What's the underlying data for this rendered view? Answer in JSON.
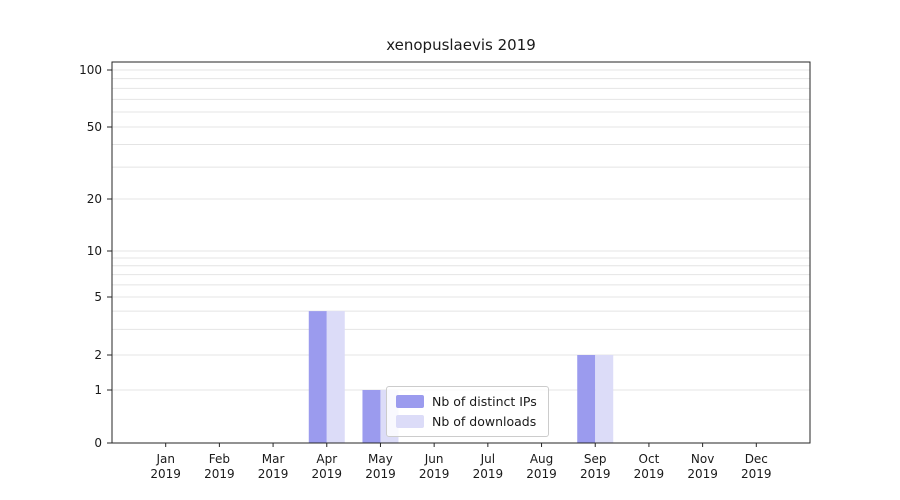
{
  "title": "xenopuslaevis 2019",
  "chart_data": {
    "type": "bar",
    "title": "xenopuslaevis 2019",
    "categories": [
      "Jan",
      "Feb",
      "Mar",
      "Apr",
      "May",
      "Jun",
      "Jul",
      "Aug",
      "Sep",
      "Oct",
      "Nov",
      "Dec"
    ],
    "year": "2019",
    "series": [
      {
        "name": "Nb of distinct IPs",
        "color": "#9b9bee",
        "values": [
          0,
          0,
          0,
          4,
          1,
          0,
          0,
          0,
          2,
          0,
          0,
          0
        ]
      },
      {
        "name": "Nb of downloads",
        "color": "#dcdcf8",
        "values": [
          0,
          0,
          0,
          4,
          1,
          0,
          0,
          0,
          2,
          0,
          0,
          0
        ]
      }
    ],
    "y_ticks": [
      0,
      1,
      2,
      5,
      10,
      20,
      50,
      100
    ],
    "ylim": [
      0,
      100
    ],
    "yscale": "log-like",
    "grid": "horizontal-minor-and-major",
    "grid_color": "#e4e4e4",
    "legend_position": "lower-center"
  }
}
